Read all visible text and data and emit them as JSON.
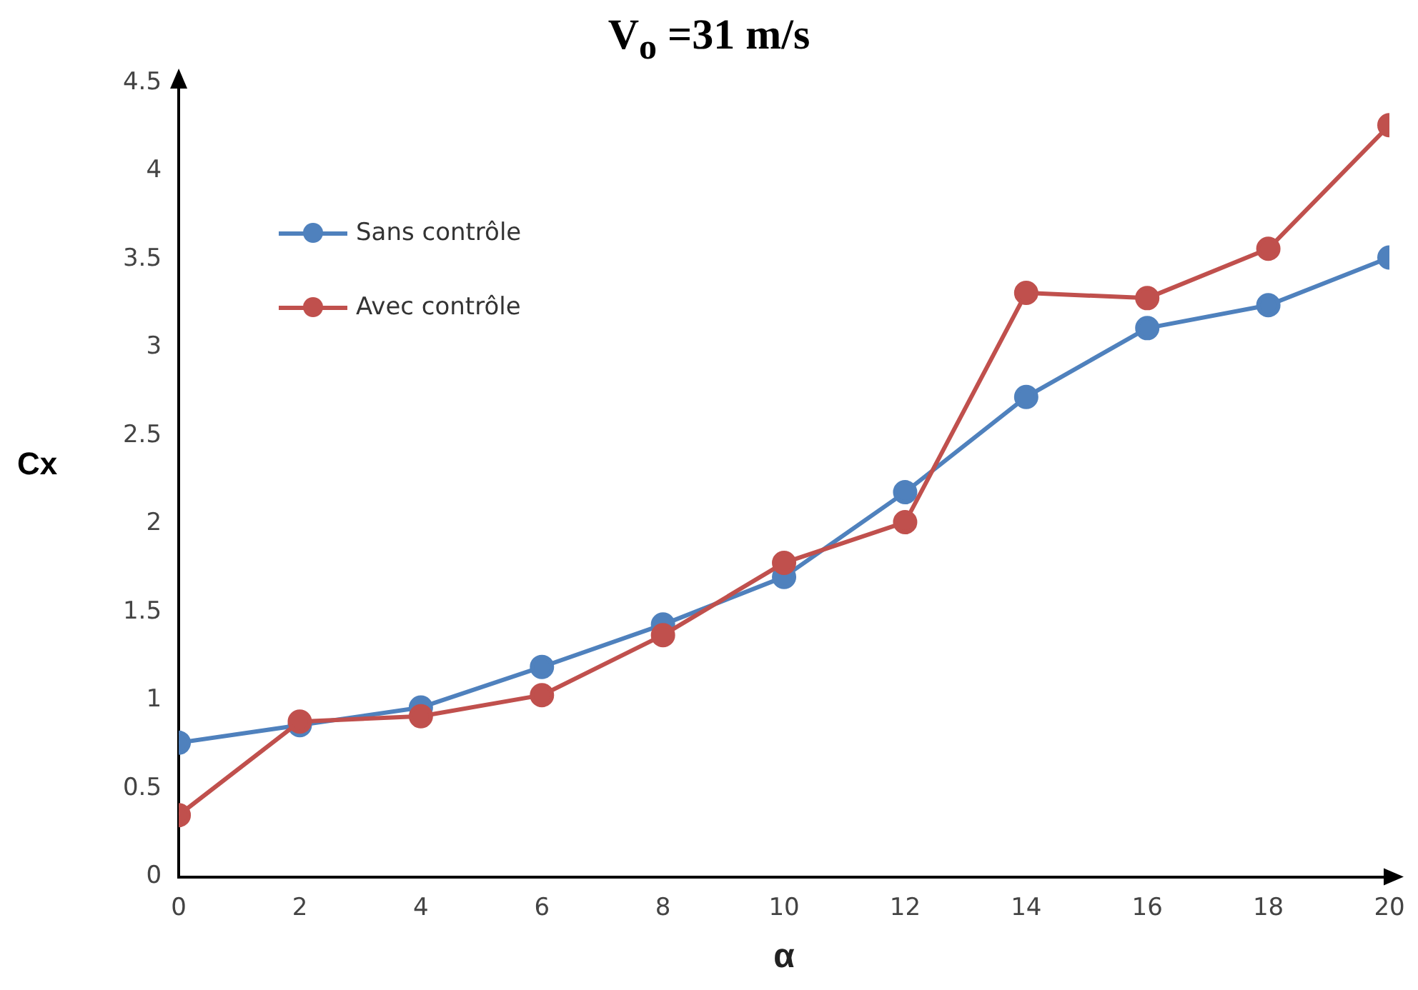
{
  "chart_data": {
    "type": "line",
    "title": "V$_{o}$ =31 m/s",
    "xlabel": "α",
    "ylabel": "Cx",
    "x": [
      0,
      2,
      4,
      6,
      8,
      10,
      12,
      14,
      16,
      18,
      20
    ],
    "series": [
      {
        "name": "Sans contrôle",
        "color": "#4f81bd",
        "values": [
          0.76,
          0.86,
          0.96,
          1.19,
          1.43,
          1.7,
          2.18,
          2.72,
          3.11,
          3.24,
          3.51
        ]
      },
      {
        "name": "Avec contrôle",
        "color": "#c0504d",
        "values": [
          0.35,
          0.88,
          0.91,
          1.03,
          1.37,
          1.78,
          2.01,
          3.31,
          3.28,
          3.56,
          4.26
        ]
      }
    ],
    "xlim": [
      0,
      20
    ],
    "xticks": [
      0,
      2,
      4,
      6,
      8,
      10,
      12,
      14,
      16,
      18,
      20
    ],
    "ylim": [
      0,
      4.5
    ],
    "yticks": [
      0,
      0.5,
      1,
      1.5,
      2,
      2.5,
      3,
      3.5,
      4,
      4.5
    ],
    "grid": false,
    "legend": "top left",
    "marker": "circle",
    "line_style": "solid"
  }
}
